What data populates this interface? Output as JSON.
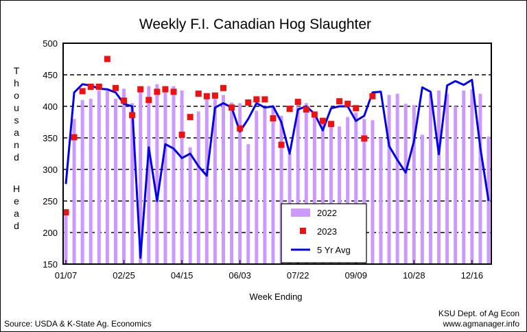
{
  "chart_data": {
    "type": "bar",
    "title": "Weekly F.I. Canadian Hog Slaughter",
    "xlabel": "Week Ending",
    "ylabel": "Thousand Head",
    "ylim": [
      150,
      500
    ],
    "yticks": [
      150,
      200,
      250,
      300,
      350,
      400,
      450,
      500
    ],
    "xtick_labels": [
      "01/07",
      "02/25",
      "04/15",
      "06/03",
      "07/22",
      "09/09",
      "10/28",
      "12/16"
    ],
    "xtick_weeks": [
      1,
      8,
      15,
      22,
      29,
      36,
      43,
      50
    ],
    "weeks": 52,
    "grid": "dashed horizontal",
    "legend_position": "bottom-center",
    "series": [
      {
        "name": "2022",
        "kind": "bar",
        "color": "#cc99ff",
        "values": [
          232,
          380,
          410,
          412,
          425,
          425,
          412,
          428,
          405,
          432,
          432,
          435,
          432,
          432,
          425,
          335,
          392,
          418,
          412,
          418,
          406,
          405,
          340,
          393,
          400,
          400,
          385,
          325,
          400,
          405,
          385,
          382,
          370,
          368,
          383,
          390,
          380,
          378,
          350,
          418,
          420,
          404,
          402,
          355,
          420,
          425,
          420,
          400,
          425,
          427,
          420,
          352
        ]
      },
      {
        "name": "2023",
        "kind": "marker",
        "color": "#ee1111",
        "values": [
          232,
          351,
          424,
          431,
          431,
          475,
          429,
          409,
          386,
          427,
          410,
          423,
          427,
          423,
          355,
          383,
          420,
          416,
          417,
          429,
          398,
          365,
          406,
          411,
          411,
          381,
          339,
          396,
          407,
          395,
          387,
          377,
          372,
          408,
          404,
          397,
          349,
          416
        ]
      },
      {
        "name": "5 Yr Avg",
        "kind": "line",
        "color": "#0000ee",
        "values": [
          277,
          422,
          435,
          433,
          428,
          427,
          422,
          404,
          400,
          160,
          335,
          250,
          340,
          333,
          318,
          325,
          305,
          290,
          398,
          405,
          398,
          360,
          380,
          405,
          398,
          400,
          375,
          325,
          395,
          400,
          388,
          362,
          397,
          400,
          400,
          377,
          385,
          422,
          423,
          337,
          315,
          295,
          345,
          430,
          423,
          324,
          433,
          440,
          434,
          442,
          335,
          250
        ]
      }
    ]
  },
  "footer": {
    "source": "Source:  USDA & K-State Ag. Economics",
    "credit_line1": "KSU Dept. of Ag Econ",
    "credit_line2": "www.agmanager.info"
  }
}
